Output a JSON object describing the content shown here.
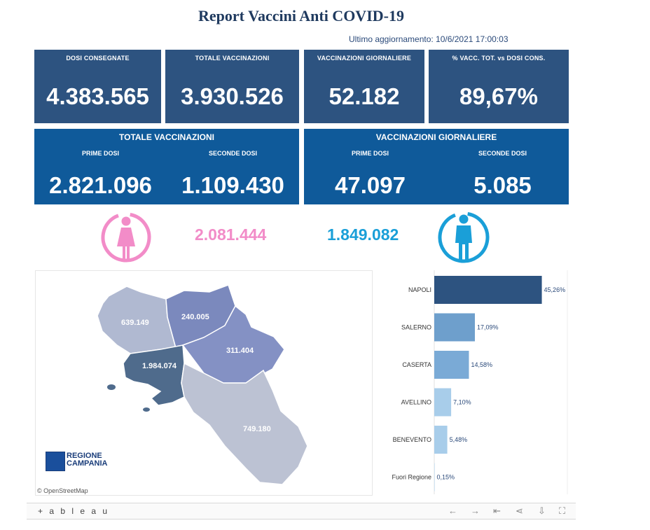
{
  "header": {
    "title": "Report Vaccini Anti COVID-19",
    "updated": "Ultimo aggiornamento: 10/6/2021 17:00:03"
  },
  "kpis": [
    {
      "label": "DOSI CONSEGNATE",
      "value": "4.383.565"
    },
    {
      "label": "TOTALE VACCINAZIONI",
      "value": "3.930.526"
    },
    {
      "label": "VACCINAZIONI GIORNALIERE",
      "value": "52.182"
    },
    {
      "label": "% VACC. TOT. vs DOSI CONS.",
      "value": "89,67%"
    }
  ],
  "panels": [
    {
      "title": "TOTALE VACCINAZIONI",
      "first_label": "PRIME DOSI",
      "first_value": "2.821.096",
      "second_label": "SECONDE DOSI",
      "second_value": "1.109.430"
    },
    {
      "title": "VACCINAZIONI GIORNALIERE",
      "first_label": "PRIME DOSI",
      "first_value": "47.097",
      "second_label": "SECONDE DOSI",
      "second_value": "5.085"
    }
  ],
  "gender": {
    "female_value": "2.081.444",
    "male_value": "1.849.082",
    "female_color": "#f28cc8",
    "male_color": "#1a9fd8",
    "female_icon": "female-icon",
    "male_icon": "male-icon"
  },
  "map": {
    "regions": [
      {
        "name": "Caserta",
        "value": "639.149"
      },
      {
        "name": "Benevento",
        "value": "240.005"
      },
      {
        "name": "Avellino",
        "value": "311.404"
      },
      {
        "name": "Napoli",
        "value": "1.984.074"
      },
      {
        "name": "Salerno",
        "value": "749.180"
      }
    ],
    "attribution": "© OpenStreetMap",
    "logo_line1": "REGIONE",
    "logo_line2": "CAMPANIA"
  },
  "chart_data": {
    "type": "bar",
    "orientation": "horizontal",
    "categories": [
      "NAPOLI",
      "SALERNO",
      "CASERTA",
      "AVELLINO",
      "BENEVENTO",
      "Fuori Regione"
    ],
    "values": [
      45.26,
      17.09,
      14.58,
      7.1,
      5.48,
      0.15
    ],
    "labels": [
      "45,26%",
      "17,09%",
      "14,58%",
      "7,10%",
      "5,48%",
      "0,15%"
    ],
    "colors": [
      "#2d5380",
      "#6e9fcc",
      "#7aaad6",
      "#a8cdea",
      "#a8cdea",
      "#a8cdea"
    ],
    "xlim": [
      0,
      56
    ]
  },
  "toolbar": {
    "logo": "+ a b l e a u",
    "icons": [
      "undo-icon",
      "redo-icon",
      "revert-icon",
      "share-icon",
      "download-icon",
      "fullscreen-icon"
    ]
  }
}
